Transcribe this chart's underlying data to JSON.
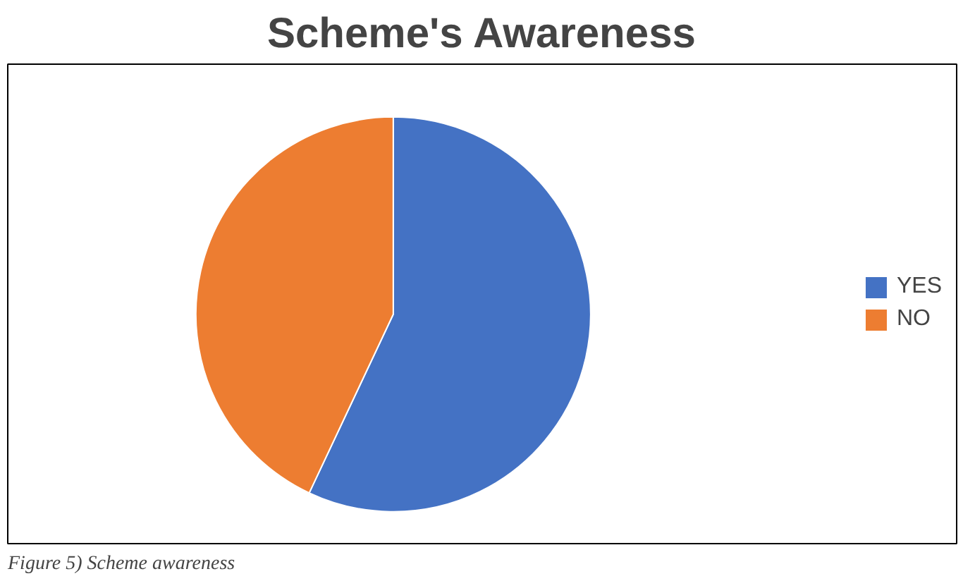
{
  "chart_data": {
    "type": "pie",
    "title": "Scheme's Awareness",
    "categories": [
      "YES",
      "NO"
    ],
    "values": [
      57,
      43
    ],
    "colors": [
      "#4472c4",
      "#ed7d31"
    ],
    "legend": "right",
    "annotations": [
      "Figure 5) Scheme awareness"
    ]
  }
}
